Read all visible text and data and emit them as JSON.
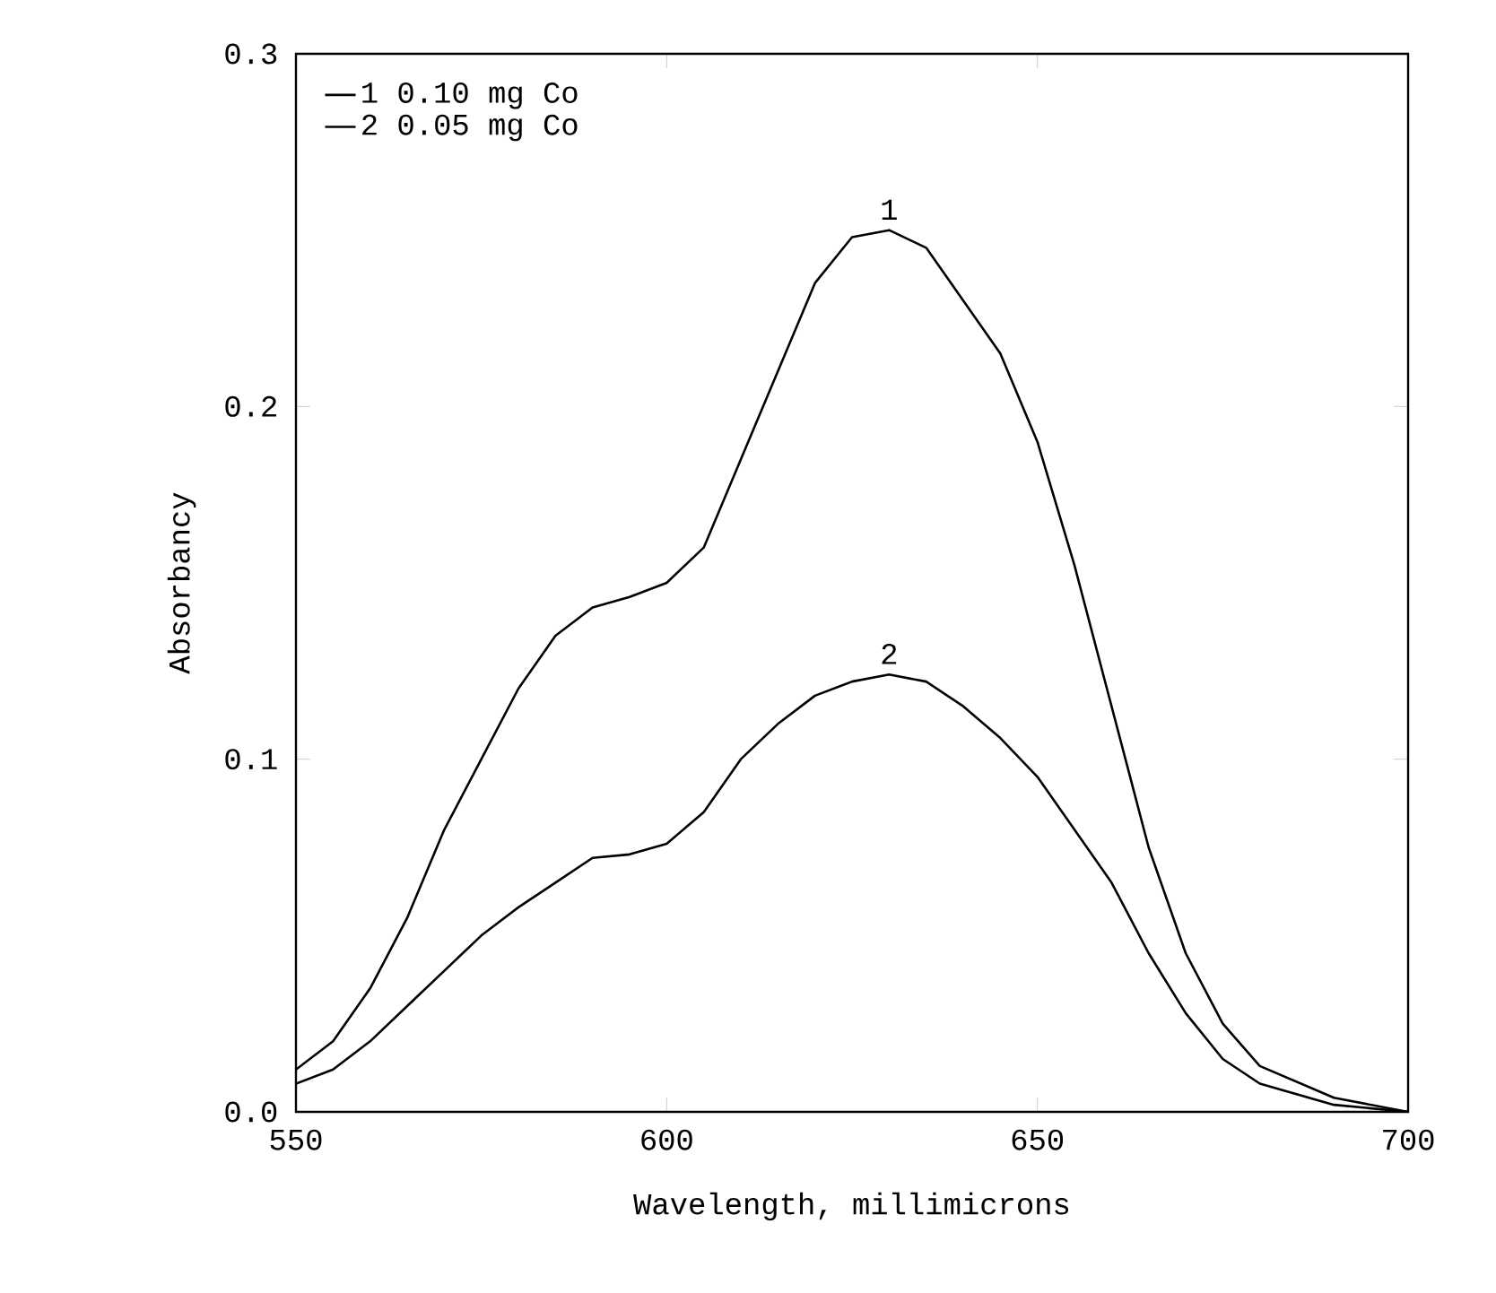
{
  "chart_data": {
    "type": "line",
    "xlabel": "Wavelength, millimicrons",
    "ylabel": "Absorbancy",
    "xlim": [
      550,
      700
    ],
    "ylim": [
      0,
      0.3
    ],
    "xticks": [
      550,
      600,
      650,
      700
    ],
    "yticks": [
      {
        "value": 0,
        "label": "0.0"
      },
      {
        "value": 0.1,
        "label": "0.1"
      },
      {
        "value": 0.2,
        "label": "0.2"
      },
      {
        "value": 0.3,
        "label": "0.3"
      }
    ],
    "x": [
      550,
      555,
      560,
      565,
      570,
      575,
      580,
      585,
      590,
      595,
      600,
      605,
      610,
      615,
      620,
      625,
      630,
      635,
      640,
      645,
      650,
      655,
      660,
      665,
      670,
      675,
      680,
      690,
      700
    ],
    "series": [
      {
        "name": "1 0.10 mg Co",
        "color": "#000000",
        "values": [
          0.012,
          0.02,
          0.035,
          0.055,
          0.08,
          0.1,
          0.12,
          0.135,
          0.143,
          0.146,
          0.15,
          0.16,
          0.185,
          0.21,
          0.235,
          0.248,
          0.25,
          0.245,
          0.23,
          0.215,
          0.19,
          0.155,
          0.115,
          0.075,
          0.045,
          0.025,
          0.013,
          0.004,
          0
        ]
      },
      {
        "name": "2 0.05 mg Co",
        "color": "#000000",
        "values": [
          0.008,
          0.012,
          0.02,
          0.03,
          0.04,
          0.05,
          0.058,
          0.065,
          0.072,
          0.073,
          0.076,
          0.085,
          0.1,
          0.11,
          0.118,
          0.122,
          0.124,
          0.122,
          0.115,
          0.106,
          0.095,
          0.08,
          0.065,
          0.045,
          0.028,
          0.015,
          0.008,
          0.002,
          0
        ]
      }
    ],
    "annotations": [
      {
        "text": "1",
        "x": 630,
        "y": 0.25
      },
      {
        "text": "2",
        "x": 630,
        "y": 0.124
      }
    ],
    "legend": "top left",
    "grid": false,
    "marker": "none",
    "line_style": "solid"
  }
}
